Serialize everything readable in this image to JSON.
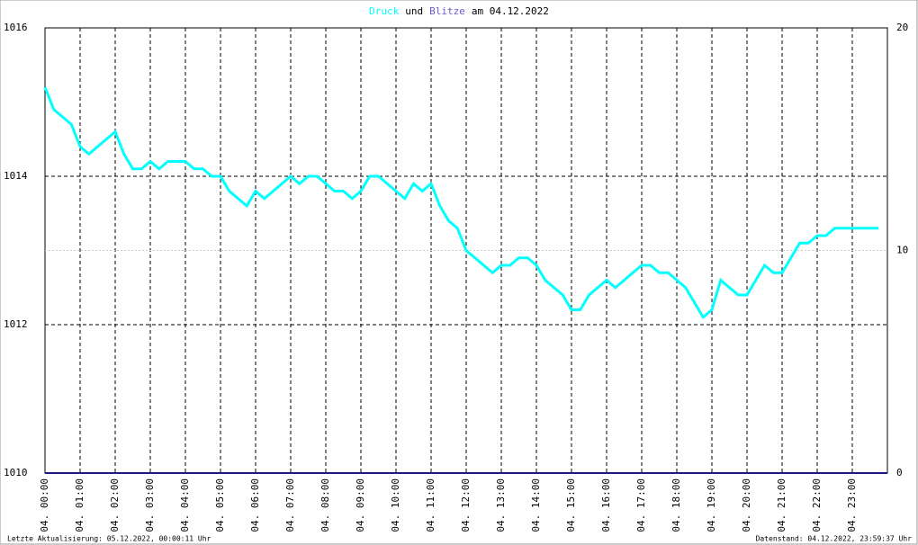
{
  "chart_data": {
    "type": "line",
    "title_parts": [
      {
        "text": "Druck",
        "color": "#00ffff"
      },
      {
        "text": "und",
        "color": "#000000"
      },
      {
        "text": "Blitze",
        "color": "#6a5acd"
      },
      {
        "text": "am 04.12.2022",
        "color": "#000000"
      }
    ],
    "footer_left": "Letzte Aktualisierung: 05.12.2022, 00:00:11 Uhr",
    "footer_right": "Datenstand: 04.12.2022, 23:59:37 Uhr",
    "xlim": [
      0,
      24
    ],
    "xticks": [
      {
        "value": 0,
        "label": "04. 00:00"
      },
      {
        "value": 1,
        "label": "04. 01:00"
      },
      {
        "value": 2,
        "label": "04. 02:00"
      },
      {
        "value": 3,
        "label": "04. 03:00"
      },
      {
        "value": 4,
        "label": "04. 04:00"
      },
      {
        "value": 5,
        "label": "04. 05:00"
      },
      {
        "value": 6,
        "label": "04. 06:00"
      },
      {
        "value": 7,
        "label": "04. 07:00"
      },
      {
        "value": 8,
        "label": "04. 08:00"
      },
      {
        "value": 9,
        "label": "04. 09:00"
      },
      {
        "value": 10,
        "label": "04. 10:00"
      },
      {
        "value": 11,
        "label": "04. 11:00"
      },
      {
        "value": 12,
        "label": "04. 12:00"
      },
      {
        "value": 13,
        "label": "04. 13:00"
      },
      {
        "value": 14,
        "label": "04. 14:00"
      },
      {
        "value": 15,
        "label": "04. 15:00"
      },
      {
        "value": 16,
        "label": "04. 16:00"
      },
      {
        "value": 17,
        "label": "04. 17:00"
      },
      {
        "value": 18,
        "label": "04. 18:00"
      },
      {
        "value": 19,
        "label": "04. 19:00"
      },
      {
        "value": 20,
        "label": "04. 20:00"
      },
      {
        "value": 21,
        "label": "04. 21:00"
      },
      {
        "value": 22,
        "label": "04. 22:00"
      },
      {
        "value": 23,
        "label": "04. 23:00"
      }
    ],
    "ylim": [
      1010,
      1016
    ],
    "yticks": [
      1010,
      1012,
      1014,
      1016
    ],
    "y2lim": [
      0,
      20
    ],
    "y2ticks": [
      0,
      10,
      20
    ],
    "grid": true,
    "series": [
      {
        "name": "Druck",
        "color": "#00ffff",
        "x": [
          0,
          0.25,
          0.5,
          0.75,
          1,
          1.25,
          1.5,
          1.75,
          2,
          2.25,
          2.5,
          2.75,
          3,
          3.25,
          3.5,
          3.75,
          4,
          4.25,
          4.5,
          4.75,
          5,
          5.25,
          5.5,
          5.75,
          6,
          6.25,
          6.5,
          6.75,
          7,
          7.25,
          7.5,
          7.75,
          8,
          8.25,
          8.5,
          8.75,
          9,
          9.25,
          9.5,
          9.75,
          10,
          10.25,
          10.5,
          10.75,
          11,
          11.25,
          11.5,
          11.75,
          12,
          12.25,
          12.5,
          12.75,
          13,
          13.25,
          13.5,
          13.75,
          14,
          14.25,
          14.5,
          14.75,
          15,
          15.25,
          15.5,
          15.75,
          16,
          16.25,
          16.5,
          16.75,
          17,
          17.25,
          17.5,
          17.75,
          18,
          18.25,
          18.5,
          18.75,
          19,
          19.25,
          19.5,
          19.75,
          20,
          20.25,
          20.5,
          20.75,
          21,
          21.25,
          21.5,
          21.75,
          22,
          22.25,
          22.5,
          22.75,
          23,
          23.25,
          23.5,
          23.75
        ],
        "values": [
          1015.2,
          1014.9,
          1014.8,
          1014.7,
          1014.4,
          1014.3,
          1014.4,
          1014.5,
          1014.6,
          1014.3,
          1014.1,
          1014.1,
          1014.2,
          1014.1,
          1014.2,
          1014.2,
          1014.2,
          1014.1,
          1014.1,
          1014.0,
          1014.0,
          1013.8,
          1013.7,
          1013.6,
          1013.8,
          1013.7,
          1013.8,
          1013.9,
          1014.0,
          1013.9,
          1014.0,
          1014.0,
          1013.9,
          1013.8,
          1013.8,
          1013.7,
          1013.8,
          1014.0,
          1014.0,
          1013.9,
          1013.8,
          1013.7,
          1013.9,
          1013.8,
          1013.9,
          1013.6,
          1013.4,
          1013.3,
          1013.0,
          1012.9,
          1012.8,
          1012.7,
          1012.8,
          1012.8,
          1012.9,
          1012.9,
          1012.8,
          1012.6,
          1012.5,
          1012.4,
          1012.2,
          1012.2,
          1012.4,
          1012.5,
          1012.6,
          1012.5,
          1012.6,
          1012.7,
          1012.8,
          1012.8,
          1012.7,
          1012.7,
          1012.6,
          1012.5,
          1012.3,
          1012.1,
          1012.2,
          1012.6,
          1012.5,
          1012.4,
          1012.4,
          1012.6,
          1012.8,
          1012.7,
          1012.7,
          1012.9,
          1013.1,
          1013.1,
          1013.2,
          1013.2,
          1013.3,
          1013.3,
          1013.3,
          1013.3,
          1013.3,
          1013.3
        ]
      },
      {
        "name": "Blitze",
        "color": "#1a1a80",
        "axis": "y2",
        "x": [
          0,
          24
        ],
        "values": [
          0,
          0
        ]
      }
    ]
  }
}
